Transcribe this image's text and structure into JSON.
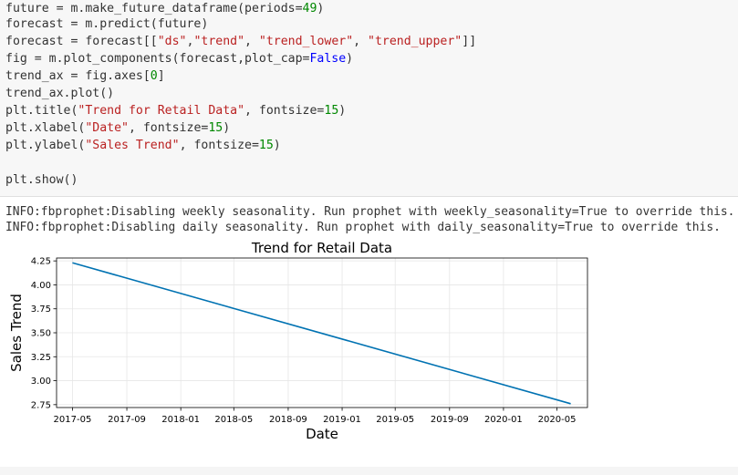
{
  "code_lines": [
    [
      {
        "t": "future = m.make_future_dataframe(periods="
      },
      {
        "t": "49",
        "c": "num"
      },
      {
        "t": ")"
      }
    ],
    [
      {
        "t": "forecast = m.predict(future)"
      }
    ],
    [
      {
        "t": "forecast = forecast[["
      },
      {
        "t": "\"ds\"",
        "c": "str"
      },
      {
        "t": ","
      },
      {
        "t": "\"trend\"",
        "c": "str"
      },
      {
        "t": ", "
      },
      {
        "t": "\"trend_lower\"",
        "c": "str"
      },
      {
        "t": ", "
      },
      {
        "t": "\"trend_upper\"",
        "c": "str"
      },
      {
        "t": "]]"
      }
    ],
    [
      {
        "t": "fig = m.plot_components(forecast,plot_cap="
      },
      {
        "t": "False",
        "c": "kw"
      },
      {
        "t": ")"
      }
    ],
    [
      {
        "t": "trend_ax = fig.axes["
      },
      {
        "t": "0",
        "c": "num"
      },
      {
        "t": "]"
      }
    ],
    [
      {
        "t": "trend_ax.plot()"
      }
    ],
    [
      {
        "t": "plt.title("
      },
      {
        "t": "\"Trend for Retail Data\"",
        "c": "str"
      },
      {
        "t": ", fontsize="
      },
      {
        "t": "15",
        "c": "num"
      },
      {
        "t": ")"
      }
    ],
    [
      {
        "t": "plt.xlabel("
      },
      {
        "t": "\"Date\"",
        "c": "str"
      },
      {
        "t": ", fontsize="
      },
      {
        "t": "15",
        "c": "num"
      },
      {
        "t": ")"
      }
    ],
    [
      {
        "t": "plt.ylabel("
      },
      {
        "t": "\"Sales Trend\"",
        "c": "str"
      },
      {
        "t": ", fontsize="
      },
      {
        "t": "15",
        "c": "num"
      },
      {
        "t": ")"
      }
    ],
    [],
    [
      {
        "t": "plt.show()"
      }
    ]
  ],
  "output": {
    "lines": [
      "INFO:fbprophet:Disabling weekly seasonality. Run prophet with weekly_seasonality=True to override this.",
      "INFO:fbprophet:Disabling daily seasonality. Run prophet with daily_seasonality=True to override this."
    ]
  },
  "chart_data": {
    "type": "line",
    "title": "Trend for Retail Data",
    "xlabel": "Date",
    "ylabel": "Sales Trend",
    "x": [
      "2017-05-01",
      "2020-06-01"
    ],
    "series": [
      {
        "values": [
          4.23,
          2.76
        ]
      }
    ],
    "xticks": [
      "2017-05",
      "2017-09",
      "2018-01",
      "2018-05",
      "2018-09",
      "2019-01",
      "2019-05",
      "2019-09",
      "2020-01",
      "2020-05"
    ],
    "yticks": [
      "2.75",
      "3.00",
      "3.25",
      "3.50",
      "3.75",
      "4.00",
      "4.25"
    ],
    "xlim": [
      "2017-03-26",
      "2020-07-09"
    ],
    "ylim": [
      2.72,
      4.28
    ],
    "grid": true,
    "line_color": "#0072b2"
  }
}
